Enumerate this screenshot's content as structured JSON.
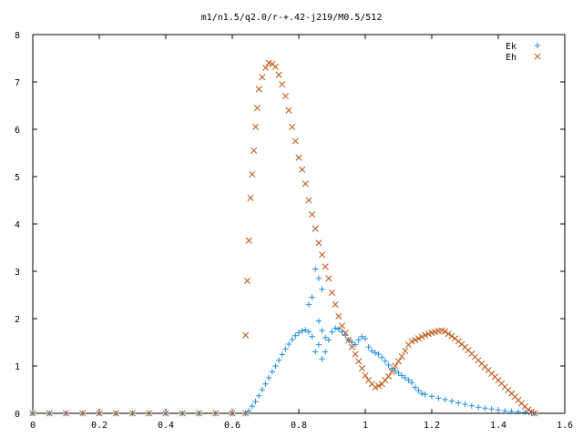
{
  "chart_data": {
    "type": "scatter",
    "title": "m1/n1.5/q2.0/r-+.42-j219/M0.5/512",
    "xlabel": "",
    "ylabel": "",
    "xlim": [
      0,
      1.6
    ],
    "ylim": [
      0,
      8
    ],
    "x_ticks": [
      "0",
      "0.2",
      "0.4",
      "0.6",
      "0.8",
      "1",
      "1.2",
      "1.4",
      "1.6"
    ],
    "y_ticks": [
      "0",
      "1",
      "2",
      "3",
      "4",
      "5",
      "6",
      "7",
      "8"
    ],
    "legend_position": "top-right",
    "series": [
      {
        "name": "Ek",
        "marker": "plus",
        "color": "#1f8fe0",
        "points": [
          [
            0.0,
            0.0
          ],
          [
            0.05,
            0.0
          ],
          [
            0.1,
            0.0
          ],
          [
            0.15,
            0.0
          ],
          [
            0.2,
            0.0
          ],
          [
            0.25,
            0.0
          ],
          [
            0.3,
            0.0
          ],
          [
            0.35,
            0.0
          ],
          [
            0.4,
            0.0
          ],
          [
            0.45,
            0.0
          ],
          [
            0.5,
            0.0
          ],
          [
            0.55,
            0.0
          ],
          [
            0.6,
            0.0
          ],
          [
            0.64,
            0.0
          ],
          [
            0.65,
            0.05
          ],
          [
            0.66,
            0.15
          ],
          [
            0.67,
            0.25
          ],
          [
            0.68,
            0.37
          ],
          [
            0.69,
            0.5
          ],
          [
            0.7,
            0.62
          ],
          [
            0.71,
            0.75
          ],
          [
            0.72,
            0.88
          ],
          [
            0.73,
            1.0
          ],
          [
            0.74,
            1.12
          ],
          [
            0.75,
            1.24
          ],
          [
            0.76,
            1.36
          ],
          [
            0.77,
            1.46
          ],
          [
            0.78,
            1.56
          ],
          [
            0.79,
            1.64
          ],
          [
            0.8,
            1.7
          ],
          [
            0.81,
            1.74
          ],
          [
            0.82,
            1.76
          ],
          [
            0.83,
            1.72
          ],
          [
            0.84,
            1.62
          ],
          [
            0.83,
            2.3
          ],
          [
            0.84,
            2.45
          ],
          [
            0.85,
            3.05
          ],
          [
            0.86,
            2.85
          ],
          [
            0.87,
            2.62
          ],
          [
            0.86,
            1.95
          ],
          [
            0.87,
            1.75
          ],
          [
            0.88,
            1.6
          ],
          [
            0.86,
            1.45
          ],
          [
            0.85,
            1.3
          ],
          [
            0.87,
            1.15
          ],
          [
            0.88,
            1.3
          ],
          [
            0.89,
            1.55
          ],
          [
            0.9,
            1.72
          ],
          [
            0.91,
            1.8
          ],
          [
            0.92,
            1.78
          ],
          [
            0.93,
            1.72
          ],
          [
            0.94,
            1.65
          ],
          [
            0.95,
            1.55
          ],
          [
            0.96,
            1.5
          ],
          [
            0.97,
            1.45
          ],
          [
            0.98,
            1.55
          ],
          [
            0.99,
            1.62
          ],
          [
            1.0,
            1.58
          ],
          [
            1.01,
            1.4
          ],
          [
            1.02,
            1.32
          ],
          [
            1.03,
            1.28
          ],
          [
            1.04,
            1.25
          ],
          [
            1.05,
            1.18
          ],
          [
            1.06,
            1.1
          ],
          [
            1.07,
            1.02
          ],
          [
            1.08,
            0.95
          ],
          [
            1.09,
            0.9
          ],
          [
            1.1,
            0.85
          ],
          [
            1.11,
            0.8
          ],
          [
            1.12,
            0.75
          ],
          [
            1.13,
            0.7
          ],
          [
            1.14,
            0.65
          ],
          [
            1.15,
            0.55
          ],
          [
            1.16,
            0.48
          ],
          [
            1.17,
            0.42
          ],
          [
            1.18,
            0.4
          ],
          [
            1.2,
            0.36
          ],
          [
            1.22,
            0.32
          ],
          [
            1.24,
            0.29
          ],
          [
            1.26,
            0.26
          ],
          [
            1.28,
            0.22
          ],
          [
            1.3,
            0.19
          ],
          [
            1.32,
            0.16
          ],
          [
            1.34,
            0.13
          ],
          [
            1.36,
            0.11
          ],
          [
            1.38,
            0.09
          ],
          [
            1.4,
            0.07
          ],
          [
            1.42,
            0.05
          ],
          [
            1.44,
            0.04
          ],
          [
            1.46,
            0.03
          ],
          [
            1.48,
            0.02
          ],
          [
            1.5,
            0.01
          ],
          [
            1.51,
            0.0
          ]
        ]
      },
      {
        "name": "Eh",
        "marker": "cross",
        "color": "#c0530f",
        "points": [
          [
            0.0,
            0.0
          ],
          [
            0.05,
            0.0
          ],
          [
            0.1,
            0.0
          ],
          [
            0.15,
            0.0
          ],
          [
            0.2,
            0.0
          ],
          [
            0.25,
            0.0
          ],
          [
            0.3,
            0.0
          ],
          [
            0.35,
            0.0
          ],
          [
            0.4,
            0.0
          ],
          [
            0.45,
            0.0
          ],
          [
            0.5,
            0.0
          ],
          [
            0.55,
            0.0
          ],
          [
            0.6,
            0.0
          ],
          [
            0.64,
            0.0
          ],
          [
            0.64,
            1.65
          ],
          [
            0.645,
            2.8
          ],
          [
            0.65,
            3.65
          ],
          [
            0.655,
            4.55
          ],
          [
            0.66,
            5.05
          ],
          [
            0.665,
            5.55
          ],
          [
            0.67,
            6.05
          ],
          [
            0.675,
            6.45
          ],
          [
            0.68,
            6.85
          ],
          [
            0.69,
            7.1
          ],
          [
            0.7,
            7.3
          ],
          [
            0.71,
            7.4
          ],
          [
            0.72,
            7.38
          ],
          [
            0.73,
            7.32
          ],
          [
            0.74,
            7.15
          ],
          [
            0.75,
            6.95
          ],
          [
            0.76,
            6.7
          ],
          [
            0.77,
            6.4
          ],
          [
            0.78,
            6.05
          ],
          [
            0.79,
            5.75
          ],
          [
            0.8,
            5.4
          ],
          [
            0.81,
            5.15
          ],
          [
            0.82,
            4.85
          ],
          [
            0.83,
            4.5
          ],
          [
            0.84,
            4.2
          ],
          [
            0.85,
            3.9
          ],
          [
            0.86,
            3.6
          ],
          [
            0.87,
            3.35
          ],
          [
            0.88,
            3.1
          ],
          [
            0.89,
            2.85
          ],
          [
            0.9,
            2.55
          ],
          [
            0.91,
            2.3
          ],
          [
            0.92,
            2.05
          ],
          [
            0.93,
            1.85
          ],
          [
            0.94,
            1.7
          ],
          [
            0.95,
            1.55
          ],
          [
            0.96,
            1.4
          ],
          [
            0.97,
            1.25
          ],
          [
            0.98,
            1.1
          ],
          [
            0.99,
            0.95
          ],
          [
            1.0,
            0.8
          ],
          [
            1.01,
            0.7
          ],
          [
            1.02,
            0.62
          ],
          [
            1.03,
            0.55
          ],
          [
            1.04,
            0.58
          ],
          [
            1.05,
            0.62
          ],
          [
            1.06,
            0.7
          ],
          [
            1.07,
            0.78
          ],
          [
            1.08,
            0.88
          ],
          [
            1.09,
            1.0
          ],
          [
            1.1,
            1.1
          ],
          [
            1.11,
            1.2
          ],
          [
            1.12,
            1.32
          ],
          [
            1.13,
            1.45
          ],
          [
            1.14,
            1.52
          ],
          [
            1.15,
            1.55
          ],
          [
            1.16,
            1.58
          ],
          [
            1.17,
            1.62
          ],
          [
            1.18,
            1.65
          ],
          [
            1.19,
            1.68
          ],
          [
            1.2,
            1.7
          ],
          [
            1.21,
            1.72
          ],
          [
            1.22,
            1.74
          ],
          [
            1.23,
            1.75
          ],
          [
            1.24,
            1.73
          ],
          [
            1.25,
            1.68
          ],
          [
            1.26,
            1.63
          ],
          [
            1.27,
            1.58
          ],
          [
            1.28,
            1.52
          ],
          [
            1.29,
            1.46
          ],
          [
            1.3,
            1.4
          ],
          [
            1.31,
            1.33
          ],
          [
            1.32,
            1.26
          ],
          [
            1.33,
            1.19
          ],
          [
            1.34,
            1.12
          ],
          [
            1.35,
            1.05
          ],
          [
            1.36,
            0.98
          ],
          [
            1.37,
            0.91
          ],
          [
            1.38,
            0.84
          ],
          [
            1.39,
            0.77
          ],
          [
            1.4,
            0.7
          ],
          [
            1.41,
            0.63
          ],
          [
            1.42,
            0.56
          ],
          [
            1.43,
            0.49
          ],
          [
            1.44,
            0.42
          ],
          [
            1.45,
            0.35
          ],
          [
            1.46,
            0.28
          ],
          [
            1.47,
            0.21
          ],
          [
            1.48,
            0.14
          ],
          [
            1.49,
            0.08
          ],
          [
            1.5,
            0.03
          ],
          [
            1.51,
            0.0
          ]
        ]
      }
    ]
  }
}
